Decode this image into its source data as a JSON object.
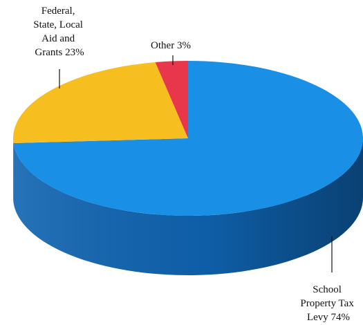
{
  "chart_data": {
    "type": "pie",
    "style": "3d",
    "start_angle_deg": -90,
    "direction": "clockwise",
    "slices": [
      {
        "label": "School Property Tax Levy",
        "percent": 74,
        "label_lines": [
          "School",
          "Property Tax",
          "Levy 74%"
        ],
        "color": "#1a8fe6",
        "side_color": "#0f63b0",
        "label_position": "bottom-right"
      },
      {
        "label": "Federal, State, Local Aid and Grants",
        "percent": 23,
        "label_lines": [
          "Federal,",
          "State, Local",
          "Aid and",
          "Grants 23%"
        ],
        "color": "#f6be1e",
        "side_color": "#c48f10",
        "label_position": "top-left"
      },
      {
        "label": "Other",
        "percent": 3,
        "label_lines": [
          "Other 3%"
        ],
        "color": "#e8364a",
        "side_color": "#a41a2c",
        "label_position": "top"
      }
    ]
  }
}
